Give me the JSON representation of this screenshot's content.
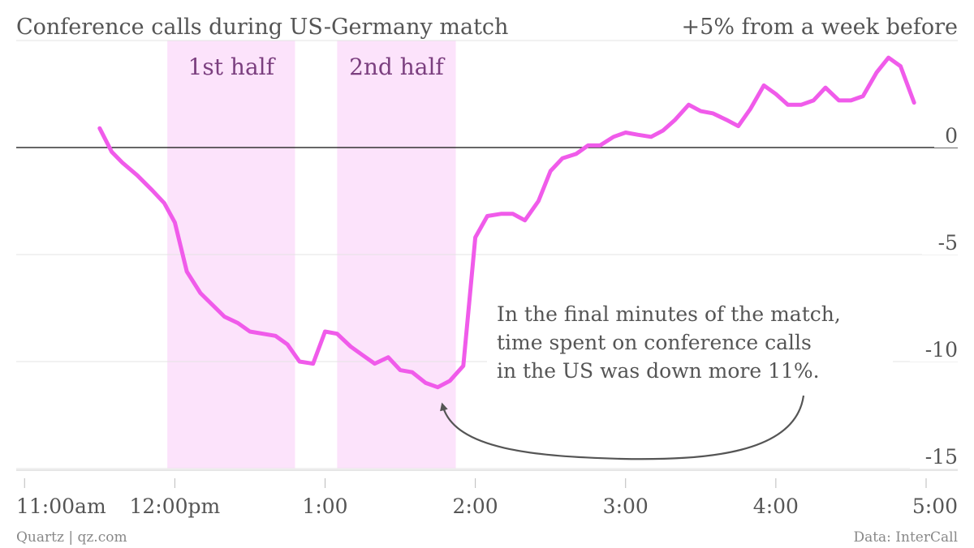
{
  "chart_data": {
    "type": "line",
    "title": "Conference calls during US-Germany match",
    "ylabel": "+5% from a week before",
    "xlim": [
      10.95,
      17.0
    ],
    "ylim": [
      -15,
      5
    ],
    "y_ticks": [
      0,
      -5,
      -10,
      -15
    ],
    "y_tick_labels": [
      "0",
      "-5",
      "-10",
      "-15"
    ],
    "x_ticks": [
      11.0,
      12.0,
      13.0,
      14.0,
      15.0,
      16.0,
      17.0
    ],
    "x_tick_labels": [
      "11:00am",
      "12:00pm",
      "1:00",
      "2:00",
      "3:00",
      "4:00",
      "5:00"
    ],
    "line_color": "#f05bea",
    "band_color": "#fce3fb",
    "bands": [
      {
        "label": "1st half",
        "start": 11.95,
        "end": 12.8
      },
      {
        "label": "2nd half",
        "start": 13.08,
        "end": 13.87
      }
    ],
    "annotation": {
      "lines": [
        "In the final minutes of the match,",
        "time spent on conference calls",
        "in the US was down more 11%."
      ],
      "target_x": 13.75,
      "target_y": -11.3
    },
    "series": [
      {
        "values": [
          {
            "x": 11.5,
            "y": 0.9
          },
          {
            "x": 11.58,
            "y": -0.2
          },
          {
            "x": 11.65,
            "y": -0.7
          },
          {
            "x": 11.75,
            "y": -1.3
          },
          {
            "x": 11.85,
            "y": -2.0
          },
          {
            "x": 11.93,
            "y": -2.6
          },
          {
            "x": 12.0,
            "y": -3.5
          },
          {
            "x": 12.08,
            "y": -5.8
          },
          {
            "x": 12.17,
            "y": -6.8
          },
          {
            "x": 12.33,
            "y": -7.9
          },
          {
            "x": 12.42,
            "y": -8.2
          },
          {
            "x": 12.5,
            "y": -8.6
          },
          {
            "x": 12.67,
            "y": -8.8
          },
          {
            "x": 12.75,
            "y": -9.2
          },
          {
            "x": 12.83,
            "y": -10.0
          },
          {
            "x": 12.92,
            "y": -10.1
          },
          {
            "x": 13.0,
            "y": -8.6
          },
          {
            "x": 13.08,
            "y": -8.7
          },
          {
            "x": 13.17,
            "y": -9.3
          },
          {
            "x": 13.25,
            "y": -9.7
          },
          {
            "x": 13.33,
            "y": -10.1
          },
          {
            "x": 13.42,
            "y": -9.8
          },
          {
            "x": 13.5,
            "y": -10.4
          },
          {
            "x": 13.58,
            "y": -10.5
          },
          {
            "x": 13.67,
            "y": -11.0
          },
          {
            "x": 13.75,
            "y": -11.2
          },
          {
            "x": 13.83,
            "y": -10.9
          },
          {
            "x": 13.92,
            "y": -10.2
          },
          {
            "x": 14.0,
            "y": -4.2
          },
          {
            "x": 14.08,
            "y": -3.2
          },
          {
            "x": 14.17,
            "y": -3.1
          },
          {
            "x": 14.25,
            "y": -3.1
          },
          {
            "x": 14.33,
            "y": -3.4
          },
          {
            "x": 14.42,
            "y": -2.5
          },
          {
            "x": 14.5,
            "y": -1.1
          },
          {
            "x": 14.58,
            "y": -0.5
          },
          {
            "x": 14.67,
            "y": -0.3
          },
          {
            "x": 14.75,
            "y": 0.1
          },
          {
            "x": 14.83,
            "y": 0.1
          },
          {
            "x": 14.92,
            "y": 0.5
          },
          {
            "x": 15.0,
            "y": 0.7
          },
          {
            "x": 15.08,
            "y": 0.6
          },
          {
            "x": 15.17,
            "y": 0.5
          },
          {
            "x": 15.25,
            "y": 0.8
          },
          {
            "x": 15.33,
            "y": 1.3
          },
          {
            "x": 15.42,
            "y": 2.0
          },
          {
            "x": 15.5,
            "y": 1.7
          },
          {
            "x": 15.58,
            "y": 1.6
          },
          {
            "x": 15.67,
            "y": 1.3
          },
          {
            "x": 15.75,
            "y": 1.0
          },
          {
            "x": 15.83,
            "y": 1.8
          },
          {
            "x": 15.92,
            "y": 2.9
          },
          {
            "x": 16.0,
            "y": 2.5
          },
          {
            "x": 16.08,
            "y": 2.0
          },
          {
            "x": 16.17,
            "y": 2.0
          },
          {
            "x": 16.25,
            "y": 2.2
          },
          {
            "x": 16.33,
            "y": 2.8
          },
          {
            "x": 16.42,
            "y": 2.2
          },
          {
            "x": 16.5,
            "y": 2.2
          },
          {
            "x": 16.58,
            "y": 2.4
          },
          {
            "x": 16.67,
            "y": 3.5
          },
          {
            "x": 16.75,
            "y": 4.2
          },
          {
            "x": 16.83,
            "y": 3.8
          },
          {
            "x": 16.92,
            "y": 2.1
          }
        ]
      }
    ]
  },
  "footer": {
    "source_left": "Quartz | qz.com",
    "source_right": "Data: InterCall"
  }
}
